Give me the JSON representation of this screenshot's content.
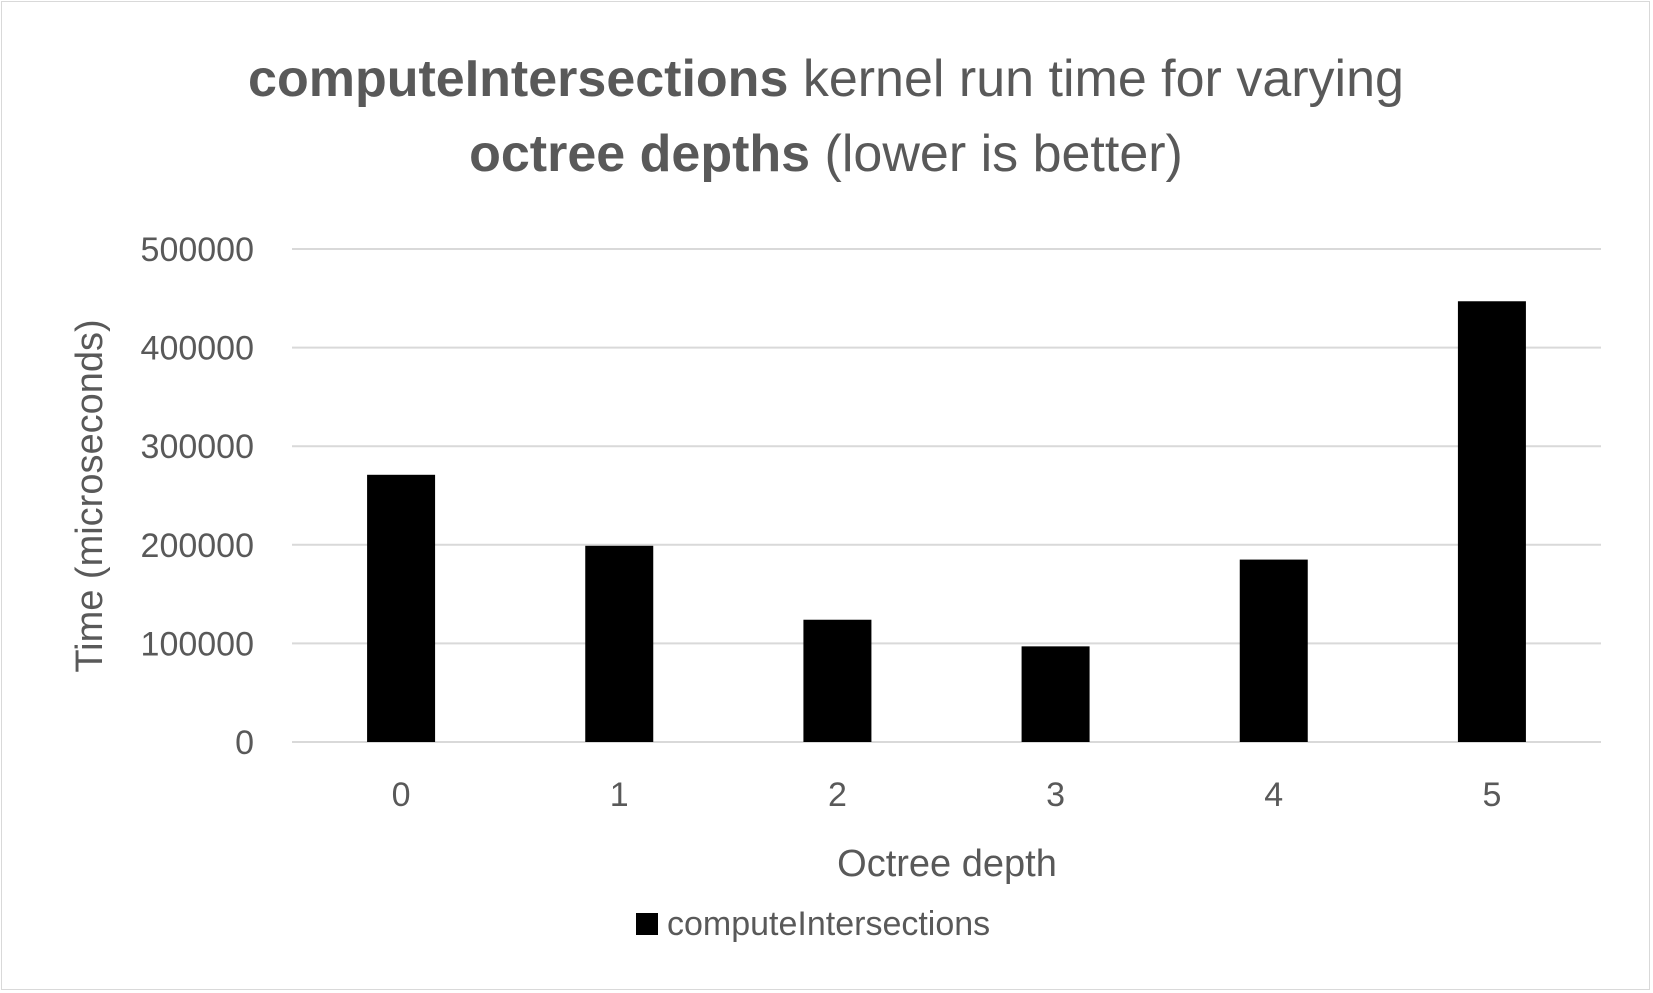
{
  "chart_data": {
    "type": "bar",
    "title_parts": [
      {
        "text": "computeIntersections",
        "bold": true
      },
      {
        "text": " kernel run time for varying",
        "bold": false
      },
      {
        "text": "octree depths",
        "bold": true
      },
      {
        "text": " (lower is better)",
        "bold": false
      }
    ],
    "title": "computeIntersections kernel run time for varying octree depths (lower is better)",
    "xlabel": "Octree depth",
    "ylabel": "Time (microseconds)",
    "categories": [
      "0",
      "1",
      "2",
      "3",
      "4",
      "5"
    ],
    "series": [
      {
        "name": "computeIntersections",
        "color": "#000000",
        "values": [
          271000,
          199000,
          124000,
          97000,
          185000,
          447000
        ]
      }
    ],
    "ylim": [
      0,
      500000
    ],
    "yticks": [
      "0",
      "100000",
      "200000",
      "300000",
      "400000",
      "500000"
    ],
    "grid": true,
    "legend_position": "bottom"
  }
}
